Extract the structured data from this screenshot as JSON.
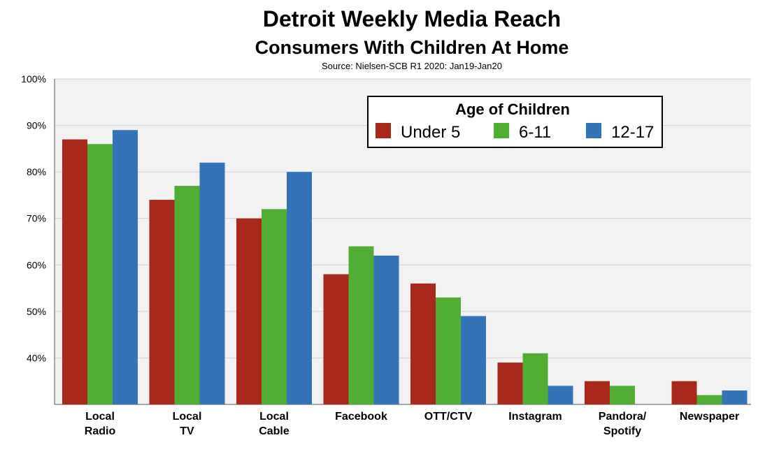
{
  "chart_data": {
    "type": "bar",
    "title": "Detroit Weekly Media Reach",
    "subtitle": "Consumers With Children At Home",
    "source": "Source: Nielsen-SCB R1 2020: Jan19-Jan20",
    "categories": [
      [
        "Local",
        "Radio"
      ],
      [
        "Local",
        "TV"
      ],
      [
        "Local",
        "Cable"
      ],
      [
        "Facebook"
      ],
      [
        "OTT/CTV"
      ],
      [
        "Instagram"
      ],
      [
        "Pandora/",
        "Spotify"
      ],
      [
        "Newspaper"
      ]
    ],
    "series": [
      {
        "name": "Under 5",
        "color": "#a8291c",
        "values": [
          87,
          74,
          70,
          58,
          56,
          39,
          35,
          35
        ]
      },
      {
        "name": "6-11",
        "color": "#52ad35",
        "values": [
          86,
          77,
          72,
          64,
          53,
          41,
          34,
          32
        ]
      },
      {
        "name": "12-17",
        "color": "#3473b8",
        "values": [
          89,
          82,
          80,
          62,
          49,
          34,
          null,
          33
        ]
      }
    ],
    "yticks": [
      40,
      50,
      60,
      70,
      80,
      90,
      100
    ],
    "ytick_labels": [
      "40%",
      "50%",
      "60%",
      "70%",
      "80%",
      "90%",
      "100%"
    ],
    "ylim": [
      30,
      100
    ],
    "grid": true,
    "legend": {
      "title": "Age of Children",
      "position": "top-right"
    },
    "colors": {
      "plot_background": "#f2f2f2",
      "gridline": "#d0d0d0"
    }
  }
}
